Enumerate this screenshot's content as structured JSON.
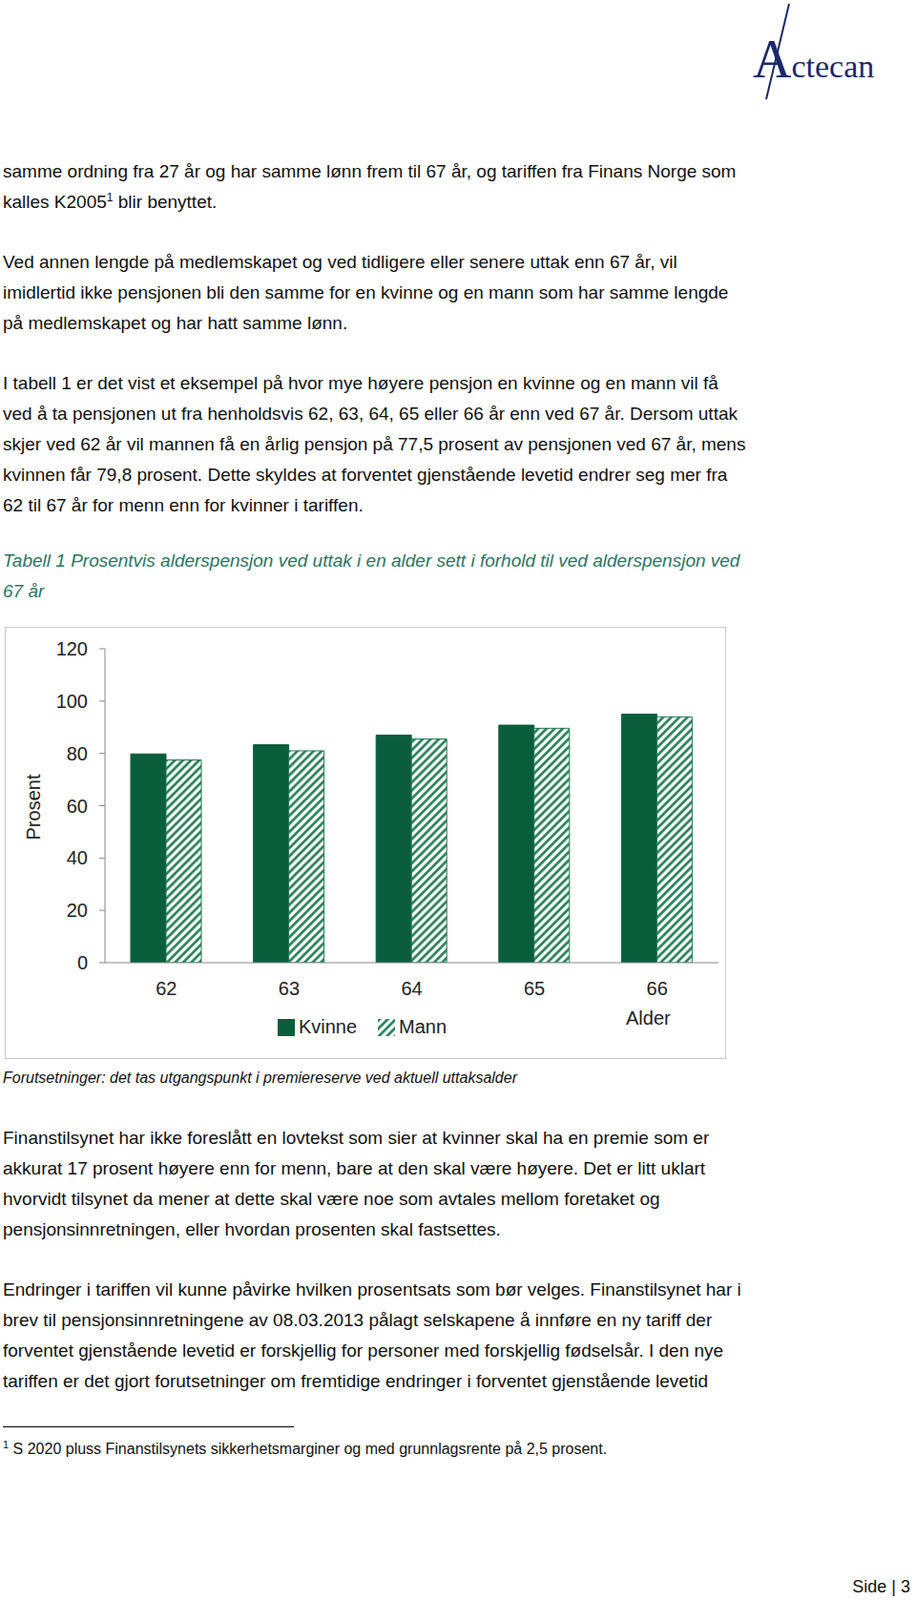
{
  "header": {
    "logo": "Actecan"
  },
  "paragraphs": [
    [
      "samme ordning fra 27 år og har samme lønn frem til 67 år, og tariffen fra Finans Norge som",
      {
        "text": "kalles K2005",
        "sup": "1",
        "after": " blir benyttet."
      }
    ],
    [
      "Ved annen lengde på medlemskapet og ved tidligere eller senere uttak enn 67 år, vil",
      "imidlertid ikke pensjonen bli den samme for en kvinne og en mann som har samme lengde",
      "på medlemskapet og har hatt samme lønn."
    ],
    [
      "I tabell 1 er det vist et eksempel på hvor mye høyere pensjon en kvinne og en mann vil få",
      "ved å ta pensjonen ut fra henholdsvis 62, 63, 64, 65 eller 66 år enn ved 67 år. Dersom uttak",
      "skjer ved 62 år vil mannen få en årlig pensjon på 77,5 prosent av pensjonen ved 67 år, mens",
      "kvinnen får 79,8 prosent. Dette skyldes at forventet gjenstående levetid endrer seg mer fra",
      "62 til 67 år for menn enn for kvinner i tariffen."
    ],
    [
      "Finanstilsynet har ikke foreslått en lovtekst som sier at kvinner skal ha en premie som er",
      "akkurat 17 prosent høyere enn for menn, bare at den skal være høyere. Det er litt uklart",
      "hvorvidt tilsynet da mener at dette skal være noe som avtales mellom foretaket og",
      "pensjonsinnretningen, eller hvordan prosenten skal fastsettes."
    ],
    [
      "Endringer i tariffen vil kunne påvirke hvilken prosentsats som bør velges. Finanstilsynet har i",
      "brev til pensjonsinnretningene av 08.03.2013 pålagt selskapene å innføre en ny tariff der",
      "forventet gjenstående levetid er forskjellig for personer med forskjellig fødselsår. I den nye",
      "tariffen er det gjort forutsetninger om fremtidige endringer i forventet gjenstående levetid"
    ]
  ],
  "caption": [
    "Tabell 1 Prosentvis alderspensjon ved uttak i en alder sett i forhold til ved alderspensjon ved",
    "67 år"
  ],
  "chart_data": {
    "type": "bar",
    "categories": [
      "62",
      "63",
      "64",
      "65",
      "66"
    ],
    "series": [
      {
        "name": "Kvinne",
        "color": "#0b5e3c",
        "values": [
          79.8,
          83.3,
          87.0,
          90.8,
          95.0
        ]
      },
      {
        "name": "Mann",
        "color": "#1f7a50",
        "values": [
          77.5,
          81.0,
          85.5,
          89.6,
          94.0
        ]
      }
    ],
    "xlabel": "Alder",
    "ylabel": "Prosent",
    "ylim": [
      0,
      120
    ],
    "yticks": [
      0,
      20,
      40,
      60,
      80,
      100,
      120
    ],
    "grid": false,
    "legend": "bottom"
  },
  "chart_note": "Forutsetninger: det tas utgangspunkt i premiereserve ved aktuell uttaksalder",
  "footnote": {
    "marker": "1",
    "text": "S 2020 pluss Finanstilsynets sikkerhetsmarginer og med grunnlagsrente på 2,5 prosent."
  },
  "page": "Side | 3"
}
